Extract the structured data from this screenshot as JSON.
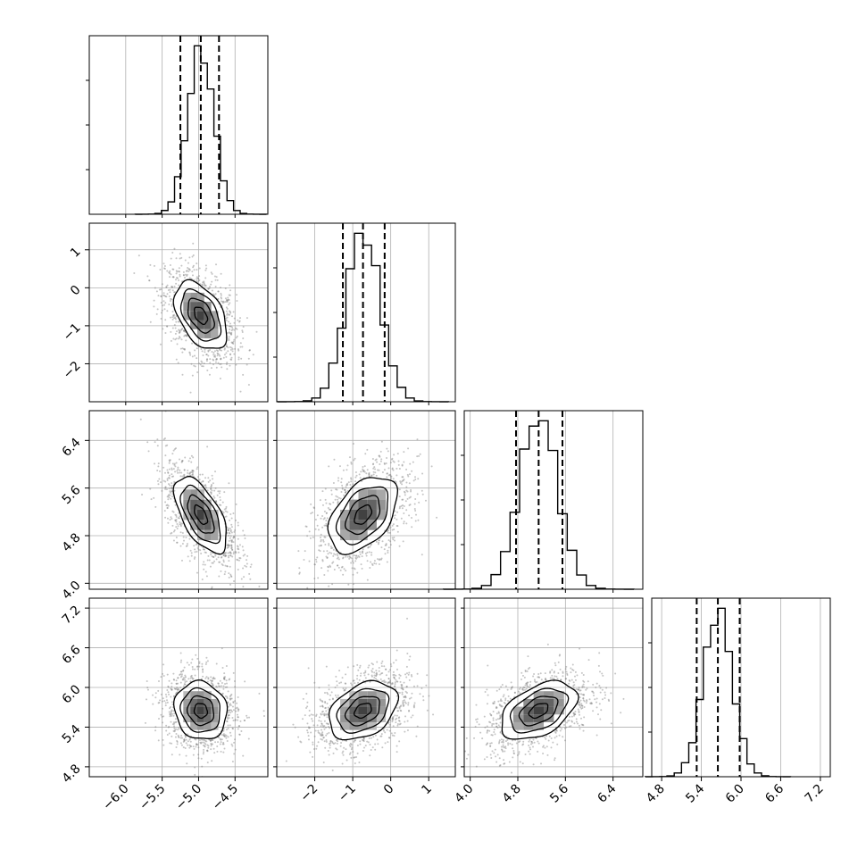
{
  "chart_data": {
    "type": "corner",
    "parameters": [
      {
        "median": -4.97,
        "sigma": 0.18,
        "q16": -5.25,
        "q84": -4.72,
        "lim": [
          -6.5,
          -4.05
        ],
        "ticks": [
          -6.0,
          -5.5,
          -5.0,
          -4.5
        ],
        "tick_labels": [
          "−6.0",
          "−5.5",
          "−5.0",
          "−4.5"
        ]
      },
      {
        "median": -0.73,
        "sigma": 0.45,
        "q16": -1.26,
        "q84": -0.16,
        "lim": [
          -3.0,
          1.7
        ],
        "ticks": [
          -2,
          -1,
          0,
          1
        ],
        "tick_labels": [
          "−2",
          "−1",
          "0",
          "1"
        ]
      },
      {
        "median": 5.15,
        "sigma": 0.32,
        "q16": 4.77,
        "q84": 5.55,
        "lim": [
          3.9,
          6.9
        ],
        "ticks": [
          4.0,
          4.8,
          5.6,
          6.4
        ],
        "tick_labels": [
          "4.0",
          "4.8",
          "5.6",
          "6.4"
        ]
      },
      {
        "median": 5.65,
        "sigma": 0.22,
        "q16": 5.33,
        "q84": 5.98,
        "lim": [
          4.65,
          7.35
        ],
        "ticks": [
          4.8,
          5.4,
          6.0,
          6.6,
          7.2
        ],
        "tick_labels": [
          "4.8",
          "5.4",
          "6.0",
          "6.6",
          "7.2"
        ]
      }
    ],
    "correlations": [
      [
        1.0,
        -0.45,
        -0.6,
        -0.1
      ],
      [
        -0.45,
        1.0,
        0.45,
        0.35
      ],
      [
        -0.6,
        0.45,
        1.0,
        0.45
      ],
      [
        -0.1,
        0.35,
        0.45,
        1.0
      ]
    ],
    "quantiles": [
      0.16,
      0.5,
      0.84
    ],
    "contour_levels": [
      0.5,
      1.0,
      1.5,
      2.0
    ],
    "histogram_bins": 20,
    "grid": true,
    "colors": {
      "line": "#000000",
      "points": "#7f7f7f",
      "grid": "#b0b0b0"
    }
  }
}
